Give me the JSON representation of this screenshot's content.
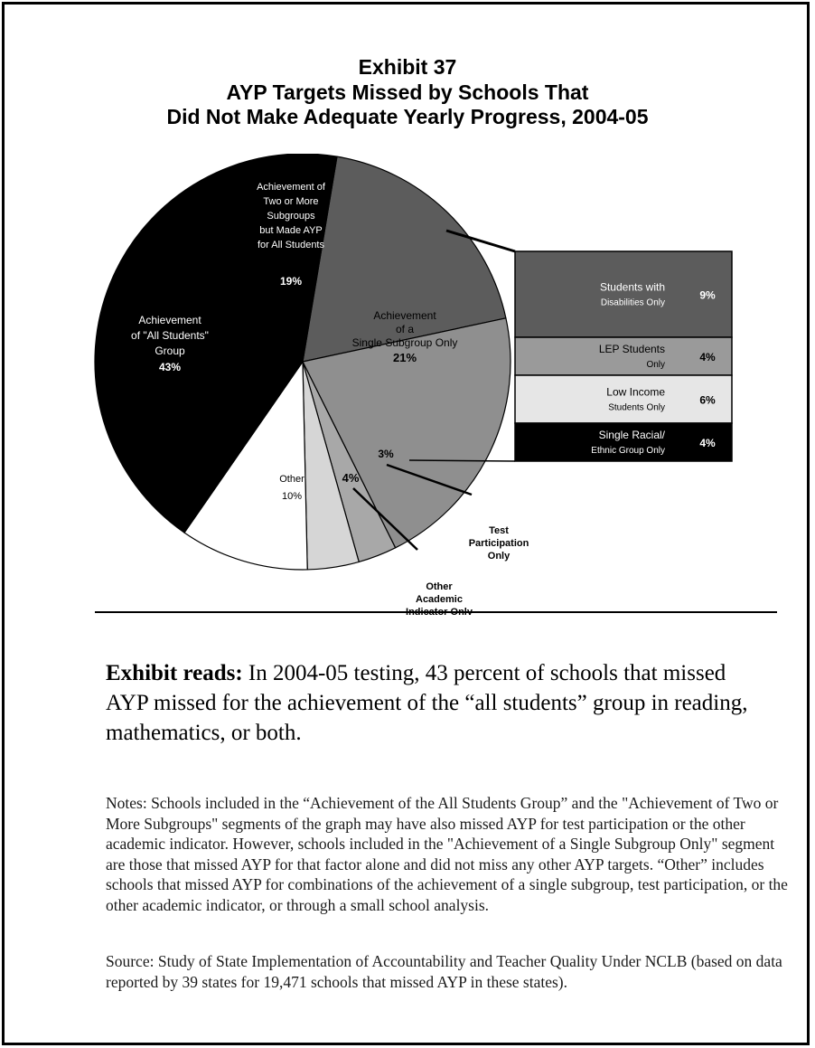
{
  "exhibit": {
    "number": "Exhibit 37",
    "title_line1": "AYP Targets Missed by Schools That",
    "title_line2": "Did Not Make Adequate Yearly Progress, 2004-05"
  },
  "chart_data": {
    "type": "pie",
    "title": "AYP Targets Missed by Schools That Did Not Make Adequate Yearly Progress, 2004-05",
    "slices": [
      {
        "label": "Achievement of Two or More Subgroups but Made AYP for All Students",
        "value": 19,
        "value_label": "19%",
        "color": "#5c5c5c"
      },
      {
        "label": "Achievement of a Single Subgroup Only",
        "value": 21,
        "value_label": "21%",
        "color": "#8f8f8f"
      },
      {
        "label": "Test Participation Only",
        "value": 3,
        "value_label": "3%",
        "color": "#a8a8a8"
      },
      {
        "label": "Other Academic Indicator Only",
        "value": 4,
        "value_label": "4%",
        "color": "#d6d6d6"
      },
      {
        "label": "Other",
        "value": 10,
        "value_label": "10%",
        "color": "#ffffff"
      },
      {
        "label": "Achievement of \"All Students\" Group",
        "value": 43,
        "value_label": "43%",
        "color": "#000000"
      }
    ],
    "breakdown": {
      "of_slice": "Achievement of a Single Subgroup Only",
      "rows": [
        {
          "label_line1": "Students with",
          "label_line2": "Disabilities Only",
          "value": 9,
          "value_label": "9%",
          "color": "#5c5c5c",
          "text_color": "#ffffff"
        },
        {
          "label_line1": "LEP Students",
          "label_line2": "Only",
          "value": 4,
          "value_label": "4%",
          "color": "#9a9a9a",
          "text_color": "#000000"
        },
        {
          "label_line1": "Low Income",
          "label_line2": "Students Only",
          "value": 6,
          "value_label": "6%",
          "color": "#e6e6e6",
          "text_color": "#000000"
        },
        {
          "label_line1": "Single Racial/",
          "label_line2": "Ethnic Group Only",
          "value": 4,
          "value_label": "4%",
          "color": "#000000",
          "text_color": "#ffffff"
        }
      ]
    }
  },
  "labels": {
    "two_more": [
      "Achievement of",
      "Two or More",
      "Subgroups",
      "but Made AYP",
      "for All Students"
    ],
    "single": [
      "Achievement",
      "of a",
      "Single Subgroup Only"
    ],
    "all_students": [
      "Achievement",
      "of \"All Students\"",
      "Group"
    ],
    "other": "Other",
    "test_participation": [
      "Test",
      "Participation",
      "Only"
    ],
    "other_academic": [
      "Other",
      "Academic",
      "Indicator Only"
    ]
  },
  "exhibit_reads": {
    "lead": "Exhibit reads:",
    "text": "In 2004-05 testing, 43 percent of schools that missed AYP missed for the achievement of the “all students” group in reading, mathematics, or both."
  },
  "notes": "Notes:  Schools included in the “Achievement of the All Students Group” and the \"Achievement of Two or More Subgroups\" segments of the graph may have also missed AYP for test participation or the other academic indicator.  However, schools included in the \"Achievement of a Single Subgroup Only\" segment are those that missed AYP for that factor alone and did not miss any other AYP targets. “Other” includes schools that missed AYP for combinations of the achievement of a single subgroup, test participation, or the other academic indicator, or through a small school analysis.",
  "source": "Source:  Study of State Implementation of Accountability and Teacher Quality Under NCLB (based on data reported by 39 states for 19,471 schools that missed AYP in these states)."
}
